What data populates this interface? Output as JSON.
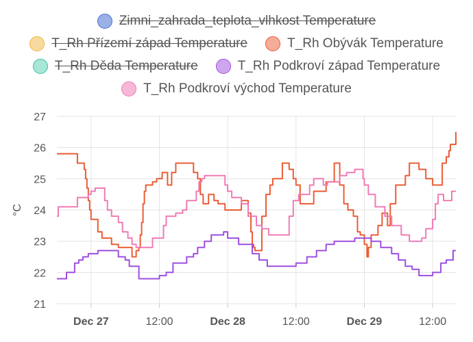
{
  "chart_data": {
    "type": "line",
    "step": true,
    "ylabel": "°C",
    "ylim": [
      21,
      27
    ],
    "yticks": [
      21,
      22,
      23,
      24,
      25,
      26,
      27
    ],
    "xlim": [
      -0.25,
      2.67
    ],
    "xticks": [
      {
        "x": 0,
        "label": "Dec 27",
        "bold": true
      },
      {
        "x": 0.5,
        "label": "12:00",
        "bold": false
      },
      {
        "x": 1,
        "label": "Dec 28",
        "bold": true
      },
      {
        "x": 1.5,
        "label": "12:00",
        "bold": false
      },
      {
        "x": 2,
        "label": "Dec 29",
        "bold": true
      },
      {
        "x": 2.5,
        "label": "12:00",
        "bold": false
      }
    ],
    "grid": true,
    "legend_position": "top",
    "series": [
      {
        "name": "Zimni_zahrada_teplota_vlhkost Temperature",
        "color": "#4a72d4",
        "fill": "#9ab0e6",
        "hidden": true,
        "points": []
      },
      {
        "name": "T_Rh Přízemí západ Temperature",
        "color": "#f0b43c",
        "fill": "#f8da9e",
        "hidden": true,
        "points": []
      },
      {
        "name": "T_Rh Obývák Temperature",
        "color": "#ea5c35",
        "fill": "#f5ad99",
        "hidden": false,
        "points": [
          [
            -0.25,
            25.8
          ],
          [
            -0.1,
            25.5
          ],
          [
            -0.05,
            25.3
          ],
          [
            -0.04,
            25.0
          ],
          [
            -0.03,
            24.7
          ],
          [
            -0.02,
            24.3
          ],
          [
            -0.01,
            24.0
          ],
          [
            0.0,
            23.7
          ],
          [
            0.05,
            23.3
          ],
          [
            0.08,
            23.1
          ],
          [
            0.15,
            22.9
          ],
          [
            0.2,
            22.8
          ],
          [
            0.3,
            22.5
          ],
          [
            0.33,
            22.7
          ],
          [
            0.35,
            22.8
          ],
          [
            0.36,
            23.2
          ],
          [
            0.37,
            23.6
          ],
          [
            0.38,
            24.2
          ],
          [
            0.39,
            24.6
          ],
          [
            0.4,
            24.8
          ],
          [
            0.45,
            24.9
          ],
          [
            0.48,
            25.0
          ],
          [
            0.52,
            25.2
          ],
          [
            0.56,
            24.8
          ],
          [
            0.59,
            25.2
          ],
          [
            0.62,
            25.5
          ],
          [
            0.75,
            25.2
          ],
          [
            0.78,
            25.0
          ],
          [
            0.8,
            24.5
          ],
          [
            0.82,
            24.2
          ],
          [
            0.86,
            24.5
          ],
          [
            0.9,
            24.3
          ],
          [
            0.93,
            24.2
          ],
          [
            0.98,
            24.0
          ],
          [
            1.1,
            24.3
          ],
          [
            1.15,
            23.9
          ],
          [
            1.17,
            23.3
          ],
          [
            1.18,
            22.9
          ],
          [
            1.19,
            22.8
          ],
          [
            1.2,
            22.7
          ],
          [
            1.25,
            23.8
          ],
          [
            1.28,
            24.5
          ],
          [
            1.31,
            24.8
          ],
          [
            1.33,
            25.0
          ],
          [
            1.4,
            25.5
          ],
          [
            1.45,
            25.3
          ],
          [
            1.48,
            25.0
          ],
          [
            1.5,
            24.8
          ],
          [
            1.53,
            24.2
          ],
          [
            1.63,
            24.6
          ],
          [
            1.72,
            24.9
          ],
          [
            1.78,
            25.5
          ],
          [
            1.82,
            24.8
          ],
          [
            1.85,
            24.2
          ],
          [
            1.88,
            24.0
          ],
          [
            1.92,
            23.8
          ],
          [
            1.95,
            23.3
          ],
          [
            1.97,
            23.2
          ],
          [
            2.0,
            22.9
          ],
          [
            2.02,
            22.5
          ],
          [
            2.03,
            22.8
          ],
          [
            2.05,
            23.2
          ],
          [
            2.1,
            23.5
          ],
          [
            2.13,
            23.9
          ],
          [
            2.17,
            23.5
          ],
          [
            2.19,
            24.2
          ],
          [
            2.23,
            24.8
          ],
          [
            2.3,
            25.1
          ],
          [
            2.33,
            25.5
          ],
          [
            2.4,
            25.3
          ],
          [
            2.45,
            25.0
          ],
          [
            2.5,
            24.8
          ],
          [
            2.57,
            25.5
          ],
          [
            2.6,
            25.7
          ],
          [
            2.62,
            25.9
          ],
          [
            2.63,
            26.1
          ],
          [
            2.65,
            26.1
          ],
          [
            2.67,
            26.5
          ]
        ]
      },
      {
        "name": "T_Rh Děda Temperature",
        "color": "#3bbfa0",
        "fill": "#a8e6d6",
        "hidden": true,
        "points": []
      },
      {
        "name": "T_Rh Podkroví západ Temperature",
        "color": "#9d4ee0",
        "fill": "#cea6ef",
        "hidden": false,
        "points": [
          [
            -0.25,
            21.8
          ],
          [
            -0.18,
            22.0
          ],
          [
            -0.12,
            22.3
          ],
          [
            -0.09,
            22.4
          ],
          [
            -0.06,
            22.5
          ],
          [
            -0.02,
            22.6
          ],
          [
            0.0,
            22.6
          ],
          [
            0.05,
            22.7
          ],
          [
            0.2,
            22.5
          ],
          [
            0.25,
            22.4
          ],
          [
            0.28,
            22.2
          ],
          [
            0.35,
            21.8
          ],
          [
            0.5,
            21.9
          ],
          [
            0.55,
            22.0
          ],
          [
            0.6,
            22.3
          ],
          [
            0.7,
            22.5
          ],
          [
            0.75,
            22.6
          ],
          [
            0.78,
            22.8
          ],
          [
            0.83,
            23.0
          ],
          [
            0.88,
            23.2
          ],
          [
            0.97,
            23.3
          ],
          [
            1.0,
            23.1
          ],
          [
            1.08,
            22.9
          ],
          [
            1.18,
            22.6
          ],
          [
            1.23,
            22.4
          ],
          [
            1.29,
            22.2
          ],
          [
            1.5,
            22.3
          ],
          [
            1.58,
            22.5
          ],
          [
            1.65,
            22.7
          ],
          [
            1.72,
            22.9
          ],
          [
            1.78,
            23.0
          ],
          [
            1.88,
            23.0
          ],
          [
            1.93,
            23.1
          ],
          [
            2.05,
            23.0
          ],
          [
            2.12,
            22.8
          ],
          [
            2.2,
            22.6
          ],
          [
            2.25,
            22.4
          ],
          [
            2.3,
            22.2
          ],
          [
            2.35,
            22.1
          ],
          [
            2.4,
            21.9
          ],
          [
            2.5,
            22.0
          ],
          [
            2.56,
            22.3
          ],
          [
            2.6,
            22.4
          ],
          [
            2.65,
            22.7
          ],
          [
            2.67,
            22.7
          ]
        ]
      },
      {
        "name": "T_Rh Podkroví východ Temperature",
        "color": "#f07ab4",
        "fill": "#f7b8d7",
        "hidden": false,
        "points": [
          [
            -0.25,
            23.8
          ],
          [
            -0.24,
            24.1
          ],
          [
            -0.18,
            24.1
          ],
          [
            -0.15,
            24.1
          ],
          [
            -0.1,
            24.4
          ],
          [
            -0.05,
            24.4
          ],
          [
            -0.02,
            24.5
          ],
          [
            0.0,
            24.6
          ],
          [
            0.03,
            24.7
          ],
          [
            0.08,
            24.7
          ],
          [
            0.1,
            24.3
          ],
          [
            0.12,
            24.0
          ],
          [
            0.15,
            23.8
          ],
          [
            0.2,
            23.6
          ],
          [
            0.23,
            23.3
          ],
          [
            0.27,
            23.1
          ],
          [
            0.3,
            22.9
          ],
          [
            0.33,
            22.8
          ],
          [
            0.4,
            22.8
          ],
          [
            0.45,
            23.1
          ],
          [
            0.53,
            23.5
          ],
          [
            0.55,
            23.8
          ],
          [
            0.62,
            23.9
          ],
          [
            0.67,
            24.0
          ],
          [
            0.7,
            24.3
          ],
          [
            0.77,
            24.6
          ],
          [
            0.79,
            24.9
          ],
          [
            0.81,
            25.0
          ],
          [
            0.83,
            25.1
          ],
          [
            0.98,
            24.8
          ],
          [
            1.0,
            24.6
          ],
          [
            1.03,
            24.4
          ],
          [
            1.1,
            24.2
          ],
          [
            1.15,
            23.8
          ],
          [
            1.21,
            23.5
          ],
          [
            1.25,
            23.4
          ],
          [
            1.3,
            23.2
          ],
          [
            1.45,
            23.8
          ],
          [
            1.48,
            24.3
          ],
          [
            1.52,
            24.5
          ],
          [
            1.56,
            24.5
          ],
          [
            1.6,
            24.8
          ],
          [
            1.63,
            25.0
          ],
          [
            1.7,
            24.8
          ],
          [
            1.73,
            24.9
          ],
          [
            1.82,
            25.1
          ],
          [
            1.87,
            25.2
          ],
          [
            1.93,
            25.3
          ],
          [
            1.99,
            25.0
          ],
          [
            2.0,
            24.8
          ],
          [
            2.03,
            24.5
          ],
          [
            2.08,
            24.1
          ],
          [
            2.15,
            23.8
          ],
          [
            2.2,
            23.5
          ],
          [
            2.27,
            23.2
          ],
          [
            2.33,
            23.0
          ],
          [
            2.42,
            23.1
          ],
          [
            2.45,
            23.4
          ],
          [
            2.5,
            23.7
          ],
          [
            2.52,
            24.2
          ],
          [
            2.54,
            24.5
          ],
          [
            2.58,
            24.3
          ],
          [
            2.62,
            24.3
          ],
          [
            2.64,
            24.6
          ],
          [
            2.67,
            24.6
          ]
        ]
      }
    ]
  }
}
